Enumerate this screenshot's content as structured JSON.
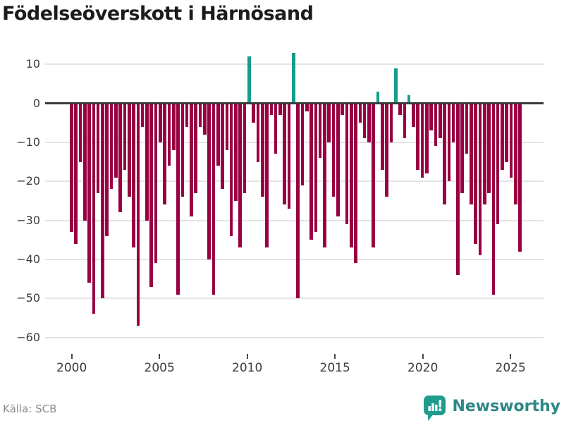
{
  "title": "Födelseöverskott i Härnösand",
  "source": "Källa: SCB",
  "branding": {
    "name": "Newsworthy"
  },
  "colors": {
    "negative_bar": "#990042",
    "positive_bar": "#169c8c",
    "gridline": "#e4e4e4",
    "zero_line": "#3b3b3b",
    "title_text": "#1c1c1c",
    "axis_text": "#3d3d3d",
    "source_text": "#8b8b8b",
    "brand_teal": "#2e8786",
    "logo_background": "#1f9c8e"
  },
  "chart_data": {
    "type": "bar",
    "title": "Födelseöverskott i Härnösand",
    "frequency": "quarterly",
    "start_year": 2000,
    "start_quarter": 1,
    "grid": true,
    "ylim": [
      -60,
      13
    ],
    "y_ticks": [
      10,
      0,
      -10,
      -20,
      -30,
      -40,
      -50,
      -60
    ],
    "y_tick_labels": [
      "10",
      "0",
      "−10",
      "−20",
      "−30",
      "−40",
      "−50",
      "−60"
    ],
    "x_tick_years": [
      2000,
      2005,
      2010,
      2015,
      2020,
      2025
    ],
    "x_tick_labels": [
      "2000",
      "2005",
      "2010",
      "2015",
      "2020",
      "2025"
    ],
    "values": [
      -33,
      -36,
      -15,
      -30,
      -46,
      -54,
      -23,
      -50,
      -34,
      -22,
      -19,
      -28,
      -17,
      -24,
      -37,
      -57,
      -6,
      -30,
      -47,
      -41,
      -10,
      -26,
      -16,
      -12,
      -49,
      -24,
      -6,
      -29,
      -23,
      -6,
      -8,
      -40,
      -49,
      -16,
      -22,
      -12,
      -34,
      -25,
      -37,
      -23,
      12,
      -5,
      -15,
      -24,
      -37,
      -3,
      -13,
      -3,
      -26,
      -27,
      13,
      -50,
      -21,
      -2,
      -35,
      -33,
      -14,
      -37,
      -10,
      -24,
      -29,
      -3,
      -31,
      -37,
      -41,
      -5,
      -9,
      -10,
      -37,
      3,
      -17,
      -24,
      -10,
      9,
      -3,
      -9,
      2,
      -6,
      -17,
      -19,
      -18,
      -7,
      -11,
      -9,
      -26,
      -20,
      -10,
      -44,
      -23,
      -13,
      -26,
      -36,
      -39,
      -26,
      -23,
      -49,
      -31,
      -17,
      -15,
      -19,
      -26,
      -38
    ]
  }
}
